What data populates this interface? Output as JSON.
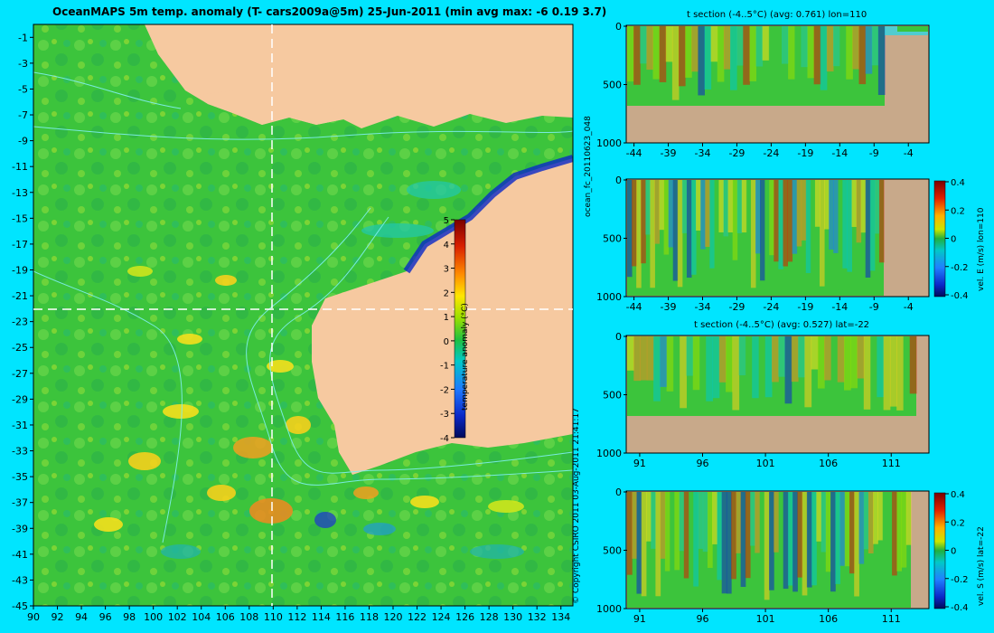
{
  "main_title": "OceanMAPS 5m temp. anomaly (T- cars2009a@5m) 25-Jun-2011 (min avg max: -6 0.19 3.7)",
  "side_labels": {
    "forecast": "ocean_fc_20110623_048",
    "copyright": "© Copyright CSIRO 2011   03-Aug-2011 21:41:17"
  },
  "colors": {
    "background": "#00e5ff",
    "land": "#f6c9a0",
    "bottom": "#c8a98a",
    "ocean_base": "#3cc43c",
    "contour": "#7ff0f0"
  },
  "chart_data": [
    {
      "type": "heatmap",
      "name": "map",
      "title": "OceanMAPS 5m temp. anomaly (T- cars2009a@5m) 25-Jun-2011 (min avg max: -6 0.19 3.7)",
      "x_ticks": [
        "90",
        "92",
        "94",
        "96",
        "98",
        "100",
        "102",
        "104",
        "106",
        "108",
        "110",
        "112",
        "114",
        "116",
        "118",
        "120",
        "122",
        "124",
        "126",
        "128",
        "130",
        "132",
        "134"
      ],
      "y_ticks": [
        "-1",
        "-3",
        "-5",
        "-7",
        "-9",
        "-11",
        "-13",
        "-15",
        "-17",
        "-19",
        "-21",
        "-23",
        "-25",
        "-27",
        "-29",
        "-31",
        "-33",
        "-35",
        "-37",
        "-39",
        "-41",
        "-43",
        "-45"
      ],
      "xlim": [
        90,
        135
      ],
      "ylim": [
        -45,
        0
      ],
      "section_lon": 110,
      "section_lat": -22,
      "colorbar": {
        "label": "temperature anomaly (°C)",
        "ticks": [
          "5",
          "4",
          "3",
          "2",
          "1",
          "0",
          "-1",
          "-2",
          "-3",
          "-4"
        ],
        "range": [
          -4,
          5
        ]
      },
      "stats": {
        "min": -6,
        "avg": 0.19,
        "max": 3.7
      }
    },
    {
      "type": "heatmap",
      "name": "t-section-lon",
      "title": "t section (-4..5°C) (avg: 0.761) lon=110",
      "x_ticks": [
        "-44",
        "-39",
        "-34",
        "-29",
        "-24",
        "-19",
        "-14",
        "-9",
        "-4"
      ],
      "y_ticks": [
        "0",
        "500",
        "1000"
      ],
      "xlim": [
        -45,
        -1
      ],
      "ylim": [
        0,
        1000
      ],
      "avg": 0.761
    },
    {
      "type": "heatmap",
      "name": "v-section-lon",
      "title": "",
      "x_ticks": [
        "-44",
        "-39",
        "-34",
        "-29",
        "-24",
        "-19",
        "-14",
        "-9",
        "-4"
      ],
      "y_ticks": [
        "0",
        "500",
        "1000"
      ],
      "xlim": [
        -45,
        -1
      ],
      "ylim": [
        0,
        1000
      ],
      "colorbar": {
        "label": "vel. E (m/s) lon=110",
        "ticks": [
          "0.4",
          "0.2",
          "0",
          "-0.2",
          "-0.4"
        ],
        "range": [
          -0.4,
          0.4
        ]
      }
    },
    {
      "type": "heatmap",
      "name": "t-section-lat",
      "title": "t section (-4..5°C) (avg: 0.527) lat=-22",
      "x_ticks": [
        "91",
        "96",
        "101",
        "106",
        "111"
      ],
      "y_ticks": [
        "0",
        "500",
        "1000"
      ],
      "xlim": [
        90,
        114
      ],
      "ylim": [
        0,
        1000
      ],
      "avg": 0.527
    },
    {
      "type": "heatmap",
      "name": "v-section-lat",
      "title": "",
      "x_ticks": [
        "91",
        "96",
        "101",
        "106",
        "111"
      ],
      "y_ticks": [
        "0",
        "500",
        "1000"
      ],
      "xlim": [
        90,
        114
      ],
      "ylim": [
        0,
        1000
      ],
      "colorbar": {
        "label": "vel. S (m/s) lat=-22",
        "ticks": [
          "0.4",
          "0.2",
          "0",
          "-0.2",
          "-0.4"
        ],
        "range": [
          -0.4,
          0.4
        ]
      }
    }
  ]
}
